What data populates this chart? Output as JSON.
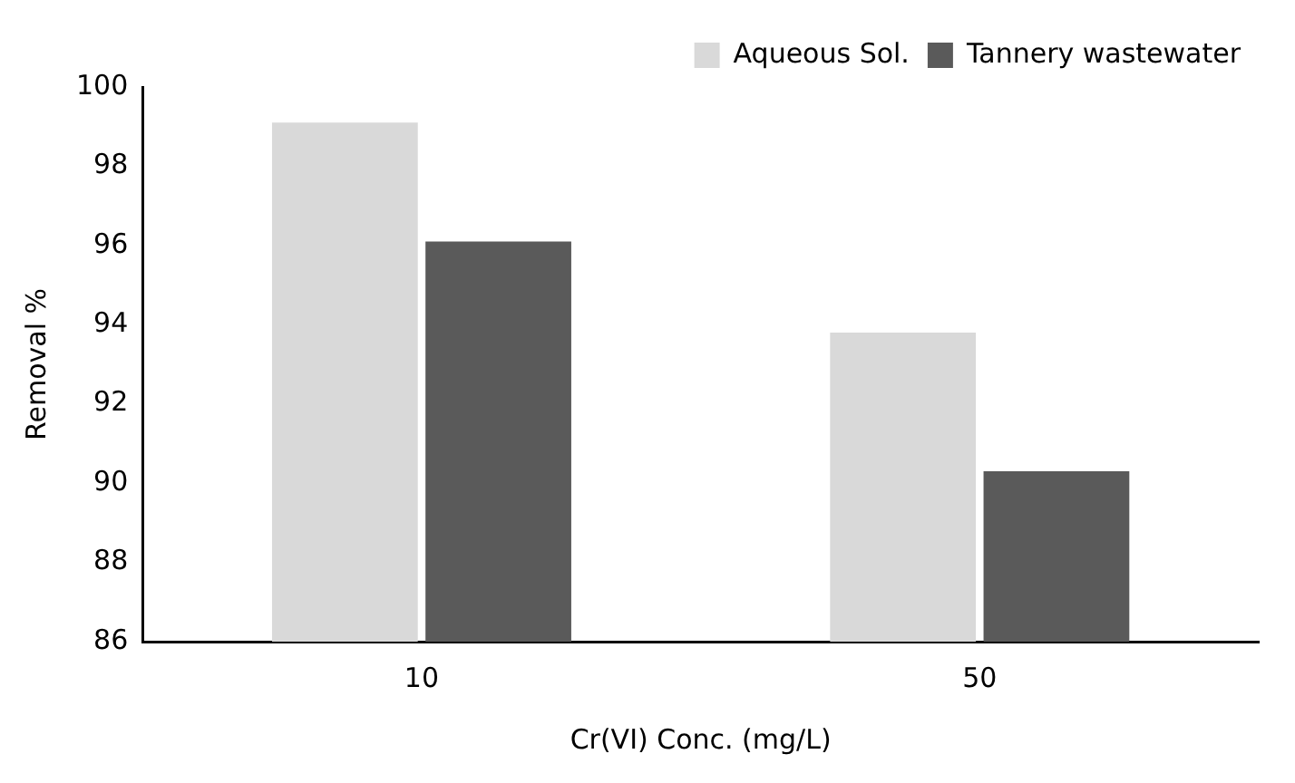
{
  "chart_data": {
    "type": "bar",
    "xlabel": "Cr(VI) Conc. (mg/L)",
    "ylabel": "Removal %",
    "categories": [
      "10",
      "50"
    ],
    "series": [
      {
        "name": "Aqueous Sol.",
        "color": "#d9d9d9",
        "values": [
          99.1,
          93.8
        ]
      },
      {
        "name": "Tannery wastewater",
        "color": "#5a5a5a",
        "values": [
          96.1,
          90.3
        ]
      }
    ],
    "ylim": [
      86,
      100
    ],
    "yticks": [
      86,
      88,
      90,
      92,
      94,
      96,
      98,
      100
    ],
    "grid": false,
    "legend": "top right"
  }
}
